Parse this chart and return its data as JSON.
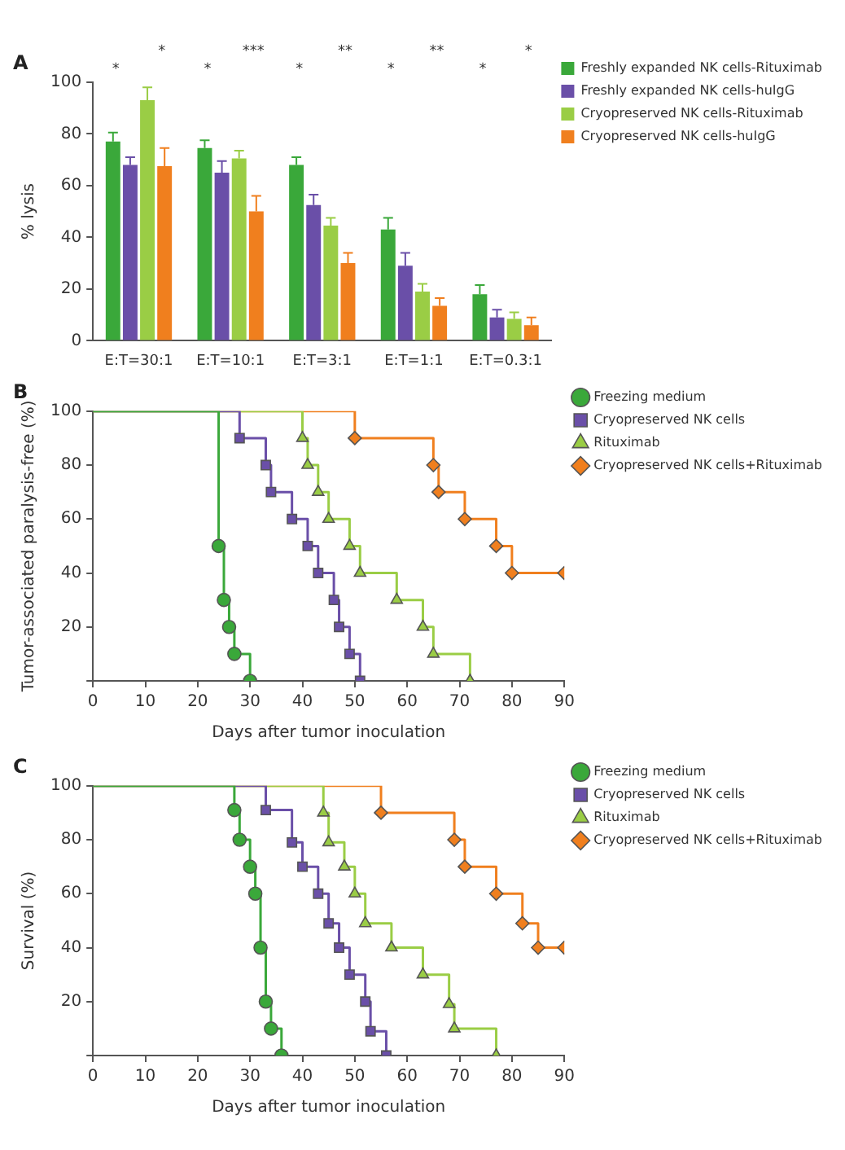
{
  "chart_data": [
    {
      "type": "bar",
      "title": "A",
      "ylabel": "% lysis",
      "categories": [
        "E:T=30:1",
        "E:T=10:1",
        "E:T=3:1",
        "E:T=1:1",
        "E:T=0.3:1"
      ],
      "ylim": [
        0,
        100
      ],
      "yticks": [
        0,
        20,
        40,
        60,
        80,
        100
      ],
      "legend": "right",
      "grid": false,
      "series": [
        {
          "name": "Freshly expanded NK cells-Rituximab",
          "color": "#3aa83a",
          "values": [
            77,
            74.5,
            68,
            43,
            18
          ],
          "errors": [
            3.5,
            3,
            3,
            4.5,
            3.5
          ]
        },
        {
          "name": "Freshly expanded NK cells-huIgG",
          "color": "#6a4fa8",
          "values": [
            68,
            65,
            52.5,
            29,
            9
          ],
          "errors": [
            3,
            4.5,
            4,
            5,
            3
          ]
        },
        {
          "name": "Cryopreserved NK cells-Rituximab",
          "color": "#9acd45",
          "values": [
            93,
            70.5,
            44.5,
            19,
            8.5
          ],
          "errors": [
            5,
            3,
            3,
            3,
            2.5
          ]
        },
        {
          "name": "Cryopreserved NK cells-huIgG",
          "color": "#f07f1e",
          "values": [
            67.5,
            50,
            30,
            13.5,
            6
          ],
          "errors": [
            7,
            6,
            4,
            3,
            3
          ]
        }
      ],
      "annotations": [
        "*",
        "*",
        "*",
        "***",
        "*",
        "**",
        "*",
        "**",
        "*",
        "*"
      ]
    },
    {
      "type": "step",
      "title": "B",
      "xlabel": "Days after tumor inoculation",
      "ylabel": "Tumor-associated paralysis-free (%)",
      "xlim": [
        0,
        90
      ],
      "xticks": [
        0,
        10,
        20,
        30,
        40,
        50,
        60,
        70,
        80,
        90
      ],
      "ylim": [
        0,
        100
      ],
      "yticks": [
        {
          "value": 0,
          "label": null
        },
        20,
        40,
        60,
        80,
        100
      ],
      "legend": "right",
      "grid": false,
      "series": [
        {
          "name": "Freezing medium",
          "color": "#3aa83a",
          "marker": "circle",
          "x": [
            0,
            24,
            25,
            26,
            27,
            30
          ],
          "values": [
            100,
            50,
            30,
            20,
            10,
            0
          ]
        },
        {
          "name": "Cryopreserved NK cells",
          "color": "#6a4fa8",
          "marker": "square",
          "x": [
            0,
            28,
            33,
            34,
            38,
            41,
            43,
            46,
            47,
            49,
            51
          ],
          "values": [
            100,
            90,
            80,
            70,
            60,
            50,
            40,
            30,
            20,
            10,
            0
          ]
        },
        {
          "name": "Rituximab",
          "color": "#9acd45",
          "marker": "triangle",
          "x": [
            0,
            40,
            41,
            43,
            45,
            49,
            51,
            58,
            63,
            65,
            72
          ],
          "values": [
            100,
            90,
            80,
            70,
            60,
            50,
            40,
            30,
            20,
            10,
            0
          ]
        },
        {
          "name": "Cryopreserved NK cells+Rituximab",
          "color": "#f07f1e",
          "marker": "diamond",
          "x": [
            0,
            50,
            65,
            66,
            71,
            77,
            80,
            90
          ],
          "values": [
            100,
            90,
            80,
            70,
            60,
            50,
            40,
            40
          ]
        }
      ]
    },
    {
      "type": "step",
      "title": "C",
      "xlabel": "Days after tumor inoculation",
      "ylabel": "Survival (%)",
      "xlim": [
        0,
        90
      ],
      "xticks": [
        0,
        10,
        20,
        30,
        40,
        50,
        60,
        70,
        80,
        90
      ],
      "ylim": [
        0,
        100
      ],
      "yticks": [
        {
          "value": 0,
          "label": null
        },
        20,
        40,
        60,
        80,
        100
      ],
      "legend": "right",
      "grid": false,
      "series": [
        {
          "name": "Freezing medium",
          "color": "#3aa83a",
          "marker": "circle",
          "x": [
            0,
            27,
            28,
            30,
            31,
            32,
            33,
            34,
            36
          ],
          "values": [
            100,
            91,
            80,
            70,
            60,
            40,
            20,
            10,
            0
          ]
        },
        {
          "name": "Cryopreserved NK cells",
          "color": "#6a4fa8",
          "marker": "square",
          "x": [
            0,
            33,
            38,
            40,
            43,
            45,
            47,
            49,
            52,
            53,
            56
          ],
          "values": [
            100,
            91,
            79,
            70,
            60,
            49,
            40,
            30,
            20,
            9,
            0
          ]
        },
        {
          "name": "Rituximab",
          "color": "#9acd45",
          "marker": "triangle",
          "x": [
            0,
            44,
            45,
            48,
            50,
            52,
            57,
            63,
            68,
            69,
            77
          ],
          "values": [
            100,
            90,
            79,
            70,
            60,
            49,
            40,
            30,
            19,
            10,
            0
          ]
        },
        {
          "name": "Cryopreserved NK cells+Rituximab",
          "color": "#f07f1e",
          "marker": "diamond",
          "x": [
            0,
            55,
            69,
            71,
            77,
            82,
            85,
            90
          ],
          "values": [
            100,
            90,
            80,
            70,
            60,
            49,
            40,
            40
          ]
        }
      ]
    }
  ]
}
